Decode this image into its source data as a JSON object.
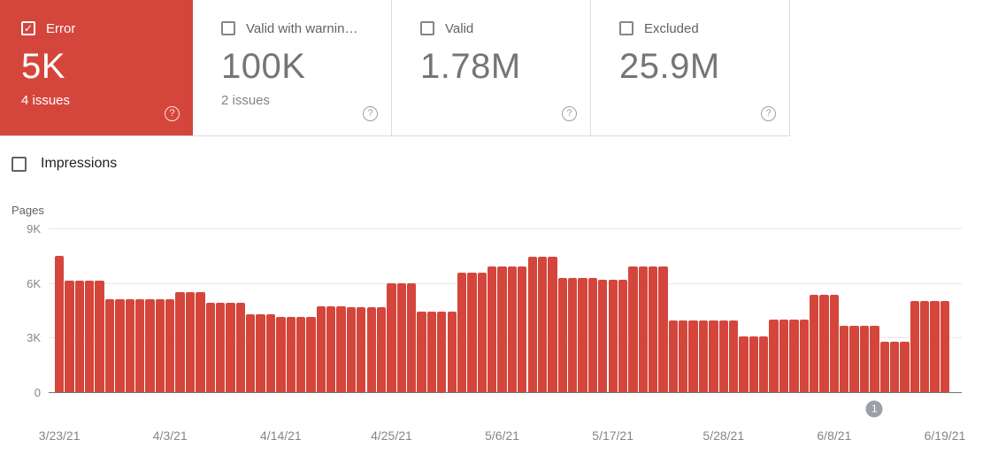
{
  "icons": {
    "help": "?",
    "check": "✓"
  },
  "colors": {
    "error_red": "#d4463c",
    "card_border": "#dadce0",
    "grid_line": "#e8e8e8",
    "axis_line": "#757575",
    "tick_text": "#80868b",
    "label_text": "#5f6368",
    "value_text": "#757575",
    "dark_text": "#202124",
    "badge_gray": "#9aa0a6"
  },
  "cards": [
    {
      "id": "error",
      "label": "Error",
      "value": "5K",
      "issues": "4 issues",
      "checked": true
    },
    {
      "id": "valid-with-warnings",
      "label": "Valid with warnin…",
      "value": "100K",
      "issues": "2 issues",
      "checked": false
    },
    {
      "id": "valid",
      "label": "Valid",
      "value": "1.78M",
      "issues": "",
      "checked": false
    },
    {
      "id": "excluded",
      "label": "Excluded",
      "value": "25.9M",
      "issues": "",
      "checked": false
    }
  ],
  "impressions": {
    "label": "Impressions",
    "checked": false
  },
  "chart_data": {
    "type": "bar",
    "ylabel": "Pages",
    "ylim": [
      0,
      9000
    ],
    "grid": true,
    "bar_color": "#d4463c",
    "x_unit": "day",
    "y_ticks": [
      {
        "label": "9K",
        "value": 9000
      },
      {
        "label": "6K",
        "value": 6000
      },
      {
        "label": "3K",
        "value": 3000
      },
      {
        "label": "0",
        "value": 0
      }
    ],
    "x_ticks": [
      {
        "label": "3/23/21",
        "bar_index": 0
      },
      {
        "label": "4/3/21",
        "bar_index": 11
      },
      {
        "label": "4/14/21",
        "bar_index": 22
      },
      {
        "label": "4/25/21",
        "bar_index": 33
      },
      {
        "label": "5/6/21",
        "bar_index": 44
      },
      {
        "label": "5/17/21",
        "bar_index": 55
      },
      {
        "label": "5/28/21",
        "bar_index": 66
      },
      {
        "label": "6/8/21",
        "bar_index": 77
      },
      {
        "label": "6/19/21",
        "bar_index": 88
      }
    ],
    "values": [
      7500,
      6150,
      6150,
      6150,
      6150,
      5100,
      5100,
      5100,
      5100,
      5100,
      5100,
      5100,
      5500,
      5500,
      5500,
      4900,
      4900,
      4900,
      4900,
      4300,
      4300,
      4300,
      4150,
      4150,
      4150,
      4150,
      4700,
      4700,
      4700,
      4650,
      4650,
      4650,
      4650,
      6000,
      6000,
      6000,
      4450,
      4450,
      4450,
      4450,
      6550,
      6550,
      6550,
      6900,
      6900,
      6900,
      6900,
      7450,
      7450,
      7450,
      6300,
      6300,
      6300,
      6300,
      6200,
      6200,
      6200,
      6900,
      6900,
      6900,
      6900,
      3950,
      3950,
      3950,
      3950,
      3950,
      3950,
      3950,
      3050,
      3050,
      3050,
      4000,
      4000,
      4000,
      4000,
      5350,
      5350,
      5350,
      3650,
      3650,
      3650,
      3650,
      2750,
      2750,
      2750,
      5000,
      5000,
      5000,
      5000
    ],
    "annotation": {
      "label": "1",
      "bar_index": 81
    }
  }
}
